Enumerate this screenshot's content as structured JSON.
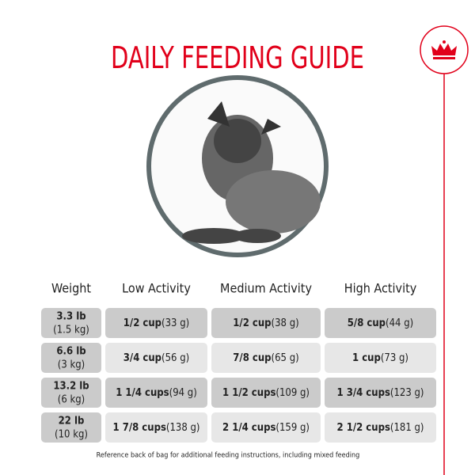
{
  "header": {
    "title": "DAILY FEEDING GUIDE"
  },
  "table": {
    "columns": [
      "Weight",
      "Low Activity",
      "Medium Activity",
      "High Activity"
    ],
    "rows": [
      {
        "weight": {
          "lb": "3.3 lb",
          "kg": "(1.5 kg)"
        },
        "cells": [
          {
            "amount": "1/2 cup",
            "grams": "(33 g)"
          },
          {
            "amount": "1/2 cup",
            "grams": "(38 g)"
          },
          {
            "amount": "5/8 cup",
            "grams": "(44 g)"
          }
        ]
      },
      {
        "weight": {
          "lb": "6.6 lb",
          "kg": "(3 kg)"
        },
        "cells": [
          {
            "amount": "3/4 cup",
            "grams": "(56 g)"
          },
          {
            "amount": "7/8 cup",
            "grams": "(65 g)"
          },
          {
            "amount": "1 cup",
            "grams": "(73 g)"
          }
        ]
      },
      {
        "weight": {
          "lb": "13.2 lb",
          "kg": "(6 kg)"
        },
        "cells": [
          {
            "amount": "1 1/4 cups",
            "grams": "(94 g)"
          },
          {
            "amount": "1 1/2 cups",
            "grams": "(109 g)"
          },
          {
            "amount": "1 3/4 cups",
            "grams": "(123 g)"
          }
        ]
      },
      {
        "weight": {
          "lb": "22 lb",
          "kg": "(10 kg)"
        },
        "cells": [
          {
            "amount": "1 7/8 cups",
            "grams": "(138 g)"
          },
          {
            "amount": "2 1/4 cups",
            "grams": "(159 g)"
          },
          {
            "amount": "2 1/2 cups",
            "grams": "(181 g)"
          }
        ]
      }
    ]
  },
  "footer": {
    "note": "Reference back of bag for additional feeding instructions, including mixed feeding"
  }
}
